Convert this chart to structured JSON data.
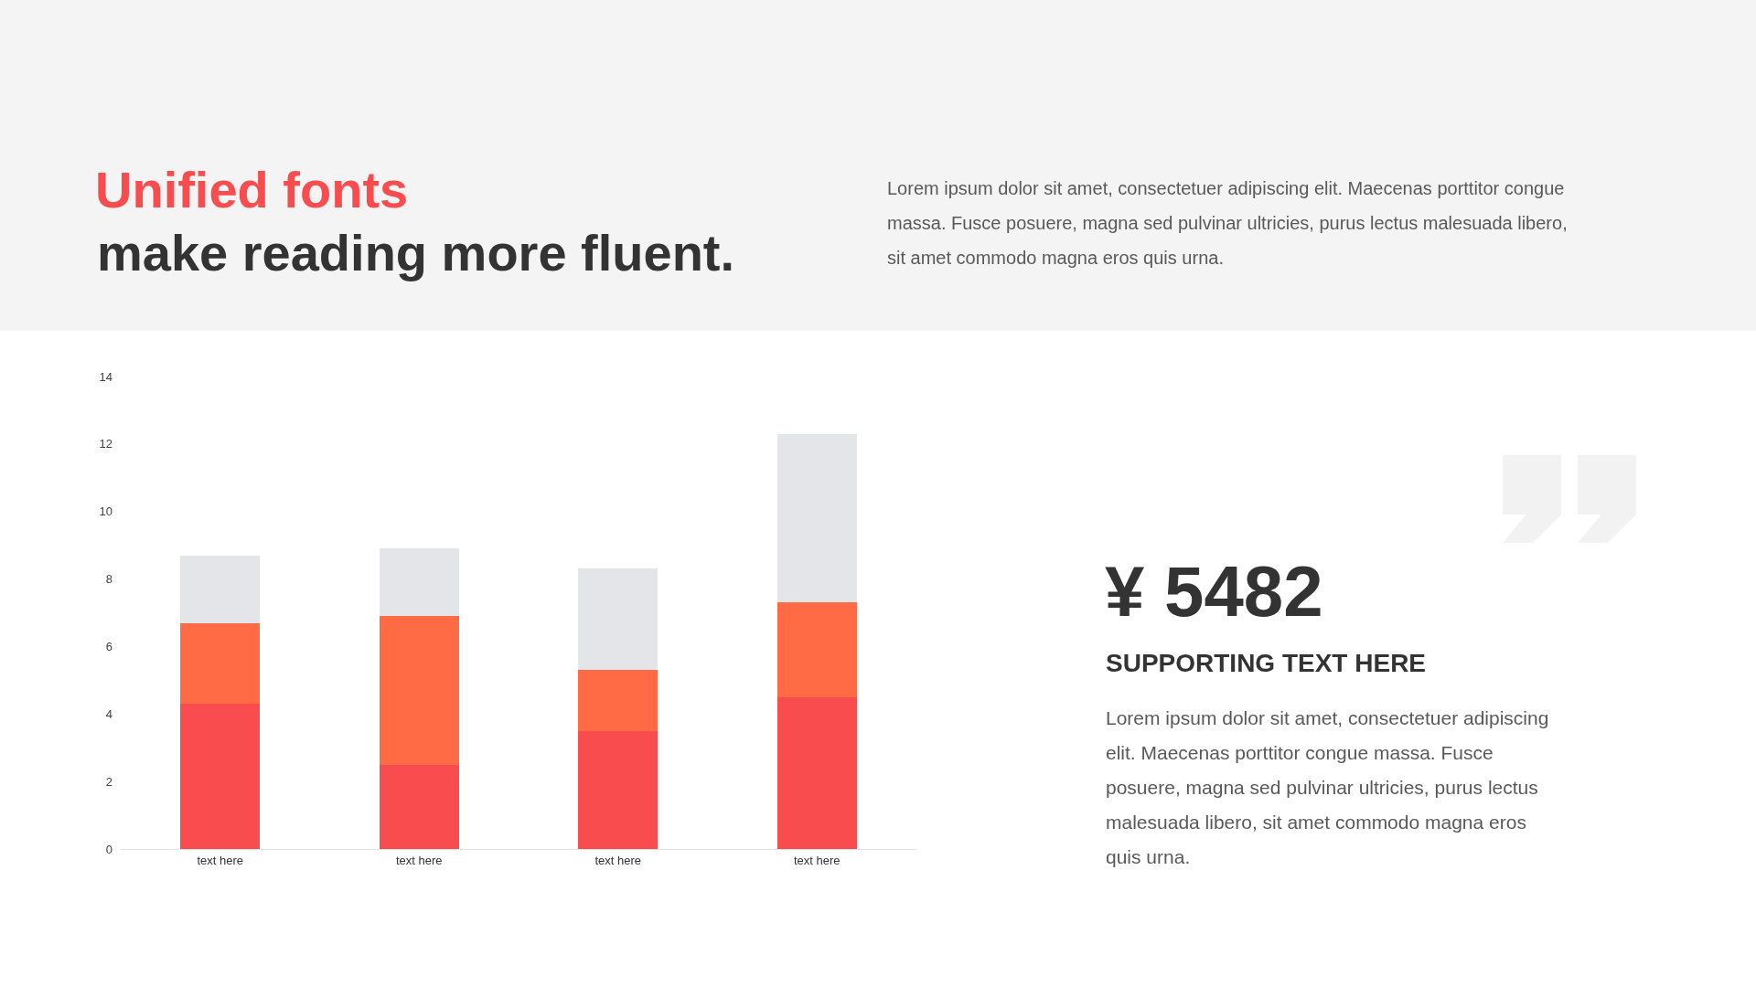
{
  "chart_data": {
    "type": "bar",
    "title": "Unified fonts",
    "subtitle": "make reading more fluent.",
    "annotations": [
      "Lorem ipsum dolor sit amet, consectetuer adipiscing elit. Maecenas porttitor congue\nmassa. Fusce posuere, magna sed pulvinar ultricies, purus lectus malesuada libero,\nsit amet commodo magna eros quis urna.",
      "¥ 5482",
      "SUPPORTING TEXT HERE",
      "Lorem ipsum dolor sit amet, consectetuer adipiscing\nelit. Maecenas porttitor congue massa. Fusce\nposuere, magna sed pulvinar ultricies, purus lectus\nmalesuada libero, sit amet commodo magna eros\nquis urna."
    ],
    "categories": [
      "text here",
      "text here",
      "text here",
      "text here"
    ],
    "series": [
      {
        "color": "#f84c4f",
        "values": [
          4.3,
          2.5,
          3.5,
          4.5
        ]
      },
      {
        "color": "#ff6b44",
        "values": [
          2.4,
          4.4,
          1.8,
          2.8
        ]
      },
      {
        "color": "#e4e5e9",
        "values": [
          2,
          2,
          3,
          5
        ]
      }
    ],
    "stacked": true,
    "ylim": [
      0,
      14
    ],
    "yticks": [
      0,
      2,
      4,
      6,
      8,
      10,
      12,
      14
    ]
  }
}
